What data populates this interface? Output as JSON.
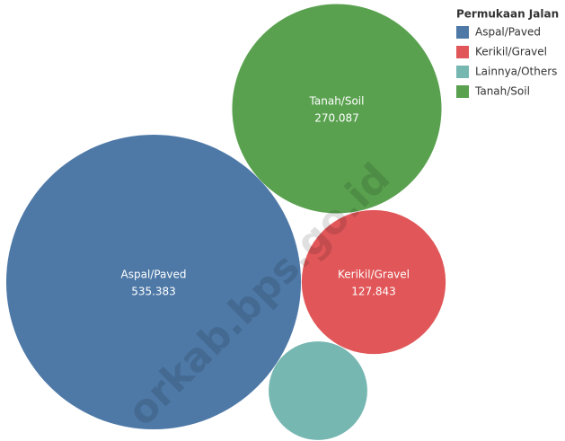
{
  "chart_data": {
    "type": "packed-bubble",
    "legend_title": "Permukaan Jalan",
    "categories": [
      "Aspal/Paved",
      "Kerikil/Gravel",
      "Lainnya/Others",
      "Tanah/Soil"
    ],
    "values": [
      535.383,
      127.843,
      60,
      270.087
    ],
    "colors": [
      "#4e79a7",
      "#e15759",
      "#76b7b2",
      "#59a14f"
    ],
    "labeled": [
      true,
      true,
      false,
      true
    ],
    "watermark": "orkab.bps.go.id"
  }
}
